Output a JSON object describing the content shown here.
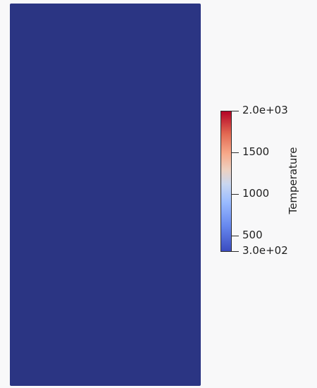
{
  "colorbar": {
    "title": "Temperature",
    "min": 300,
    "max": 2000,
    "colormap": "Cool to Warm",
    "ticks": [
      {
        "value": 2000,
        "label": "2.0e+03"
      },
      {
        "value": 1500,
        "label": "1500"
      },
      {
        "value": 1000,
        "label": "1000"
      },
      {
        "value": 500,
        "label": "500"
      },
      {
        "value": 300,
        "label": "3.0e+02"
      }
    ]
  },
  "field": {
    "color": "#2b3583"
  }
}
